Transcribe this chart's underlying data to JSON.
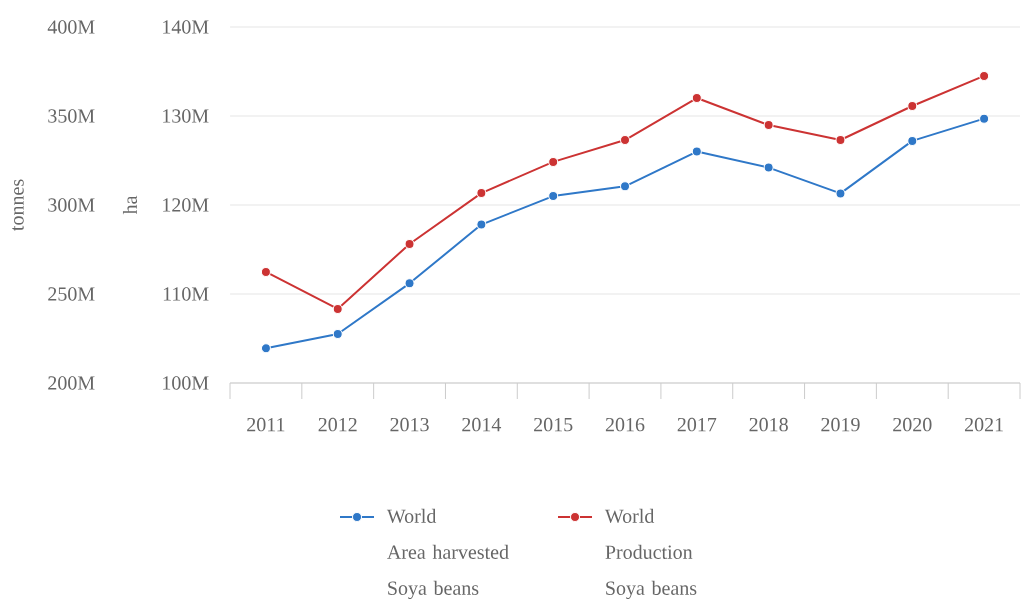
{
  "chart_data": {
    "type": "line",
    "ylabel": "ha",
    "y2label": "tonnes",
    "categories": [
      "2011",
      "2012",
      "2013",
      "2014",
      "2015",
      "2016",
      "2017",
      "2018",
      "2019",
      "2020",
      "2021"
    ],
    "series": [
      {
        "name": "World\nArea harvested\nSoya beans",
        "color": "#2f78c8",
        "values": [
          103900000,
          105500000,
          111200000,
          117800000,
          121000000,
          122100000,
          126000000,
          124200000,
          121300000,
          127200000,
          129700000
        ]
      },
      {
        "name": "World\nProduction\nSoya beans",
        "color": "#cc3333",
        "axis": "y2",
        "values": [
          262400000,
          241600000,
          278100000,
          306700000,
          324200000,
          336500000,
          360100000,
          344900000,
          336500000,
          355600000,
          372500000
        ]
      }
    ],
    "ylim": [
      100000000,
      140000000
    ],
    "yticks": [
      {
        "value": 100000000,
        "label": "100M"
      },
      {
        "value": 110000000,
        "label": "110M"
      },
      {
        "value": 120000000,
        "label": "120M"
      },
      {
        "value": 130000000,
        "label": "130M"
      },
      {
        "value": 140000000,
        "label": "140M"
      }
    ],
    "y2lim": [
      200000000,
      400000000
    ],
    "y2ticks": [
      {
        "value": 200000000,
        "label": "200M"
      },
      {
        "value": 250000000,
        "label": "250M"
      },
      {
        "value": 300000000,
        "label": "300M"
      },
      {
        "value": 350000000,
        "label": "350M"
      },
      {
        "value": 400000000,
        "label": "400M"
      }
    ],
    "grid": "y",
    "legend": "bottom",
    "marker": "circle",
    "line_style": "solid"
  }
}
